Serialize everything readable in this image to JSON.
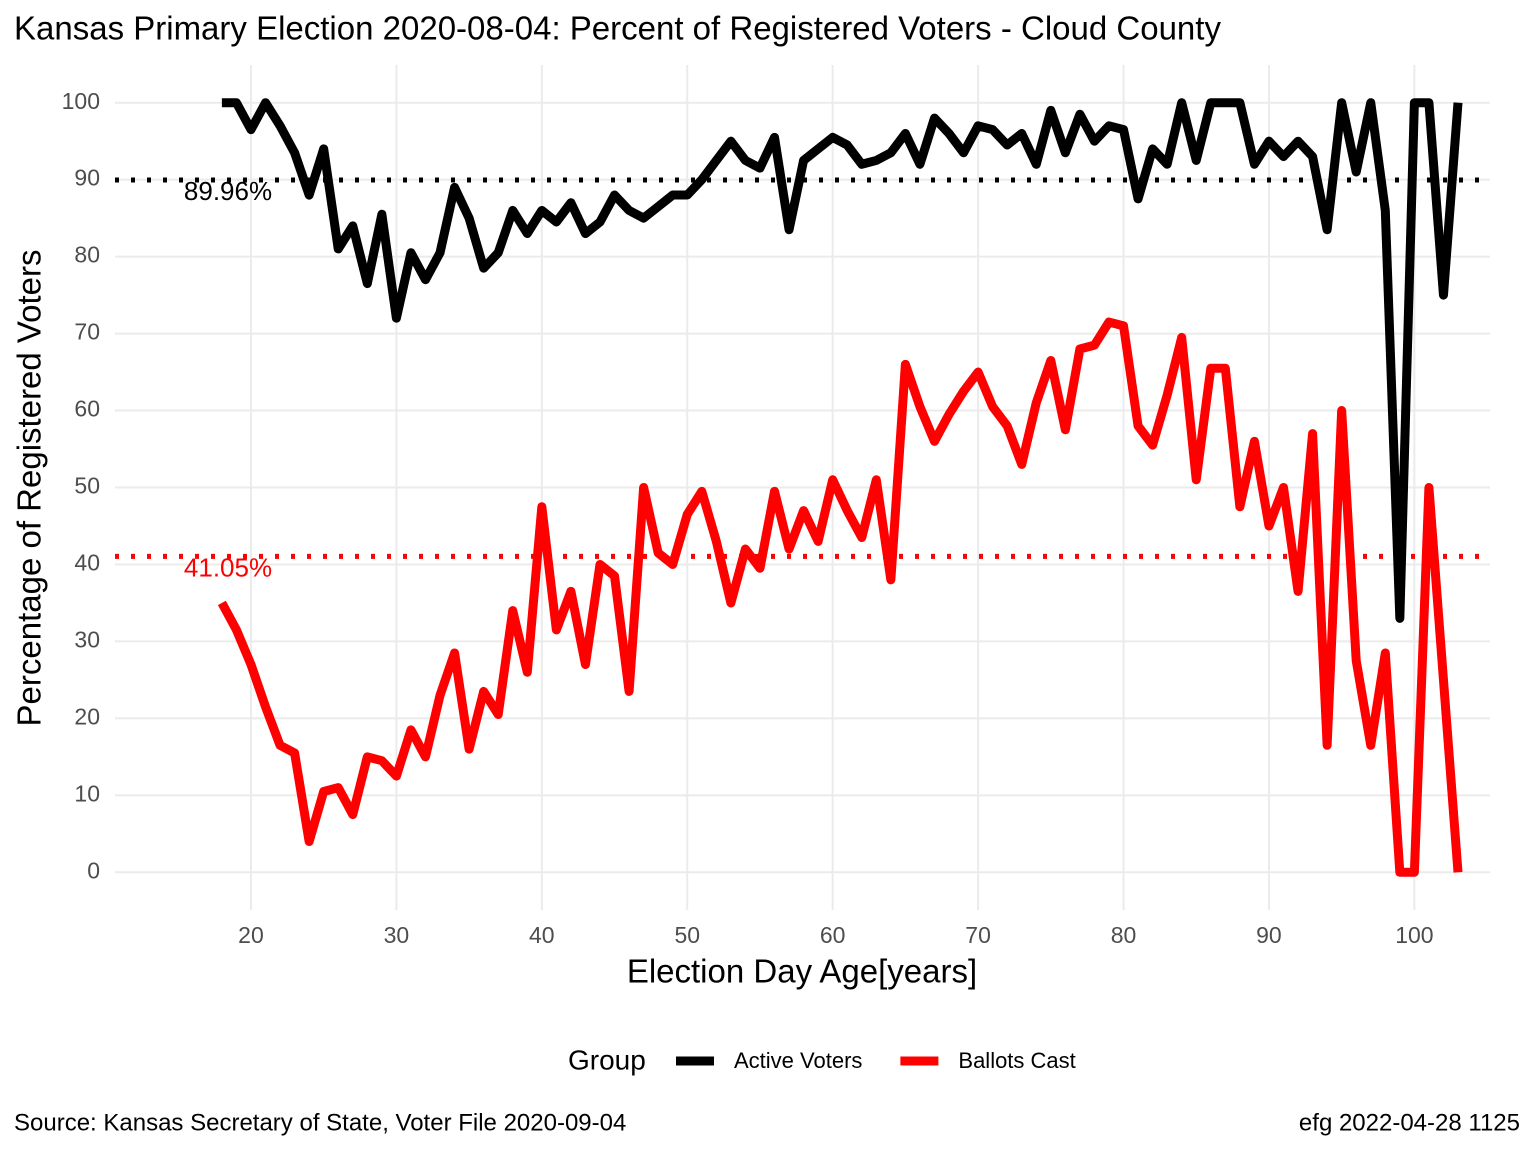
{
  "chart_data": {
    "type": "line",
    "title": "Kansas Primary Election 2020-08-04:  Percent of Registered Voters - Cloud County",
    "x_label": "Election Day Age[years]",
    "y_label": "Percentage of Registered Voters",
    "legend_title": "Group",
    "caption_left": "Source:  Kansas Secretary of State, Voter File  2020-09-04",
    "caption_right": "efg 2022-04-28 1125",
    "x": [
      18,
      19,
      20,
      21,
      22,
      23,
      24,
      25,
      26,
      27,
      28,
      29,
      30,
      31,
      32,
      33,
      34,
      35,
      36,
      37,
      38,
      39,
      40,
      41,
      42,
      43,
      44,
      45,
      46,
      47,
      48,
      49,
      50,
      51,
      52,
      53,
      54,
      55,
      56,
      57,
      58,
      59,
      60,
      61,
      62,
      63,
      64,
      65,
      66,
      67,
      68,
      69,
      70,
      71,
      72,
      73,
      74,
      75,
      76,
      77,
      78,
      79,
      80,
      81,
      82,
      83,
      84,
      85,
      86,
      87,
      88,
      89,
      90,
      91,
      92,
      93,
      94,
      95,
      96,
      97,
      98,
      99,
      100,
      101,
      102,
      103
    ],
    "series": [
      {
        "name": "Active Voters",
        "color": "#000000",
        "values": [
          100,
          100,
          96.5,
          100,
          97,
          93.5,
          88,
          94,
          81,
          84,
          76.5,
          85.5,
          72,
          80.5,
          77,
          80.5,
          89,
          85,
          78.5,
          80.5,
          86,
          83,
          86,
          84.5,
          87,
          83,
          84.5,
          88,
          86,
          85,
          86.5,
          88,
          88,
          90,
          92.5,
          95,
          92.5,
          91.5,
          95.5,
          83.5,
          92.5,
          94,
          95.5,
          94.5,
          92,
          92.5,
          93.5,
          96,
          92,
          98,
          96,
          93.5,
          97,
          96.5,
          94.5,
          96,
          92,
          99,
          93.5,
          98.5,
          95,
          97,
          96.5,
          87.5,
          94,
          92,
          100,
          92.5,
          100,
          100,
          100,
          92,
          95,
          93,
          95,
          93,
          83.5,
          100,
          91,
          100,
          86,
          33,
          100,
          100,
          75,
          100
        ]
      },
      {
        "name": "Ballots Cast",
        "color": "#ff0000",
        "values": [
          35,
          31.5,
          27,
          21.5,
          16.5,
          15.5,
          4,
          10.5,
          11,
          7.5,
          15,
          14.5,
          12.5,
          18.5,
          15,
          23,
          28.5,
          16,
          23.5,
          20.5,
          34,
          26,
          47.5,
          31.5,
          36.5,
          27,
          40,
          38.5,
          23.5,
          50,
          41.5,
          40,
          46.5,
          49.5,
          43,
          35,
          42,
          39.5,
          49.5,
          42,
          47,
          43,
          51,
          47,
          43.5,
          51,
          38,
          66,
          60.5,
          56,
          59.5,
          62.5,
          65,
          60.5,
          58,
          53,
          61,
          66.5,
          57.5,
          68,
          68.5,
          71.5,
          71,
          58,
          55.5,
          62,
          69.5,
          51,
          65.5,
          65.5,
          47.5,
          56,
          45,
          50,
          36.5,
          57,
          16.5,
          60,
          27.5,
          16.5,
          28.5,
          0,
          0,
          50,
          25,
          0
        ]
      }
    ],
    "hlines": [
      {
        "value": 89.96,
        "label": "89.96%",
        "color": "#000000"
      },
      {
        "value": 41.05,
        "label": "41.05%",
        "color": "#ff0000"
      }
    ],
    "xlim": [
      10.65,
      105.2
    ],
    "ylim": [
      -4.9,
      104.9
    ],
    "xticks": [
      20,
      30,
      40,
      50,
      60,
      70,
      80,
      90,
      100
    ],
    "yticks": [
      0,
      10,
      20,
      30,
      40,
      50,
      60,
      70,
      80,
      90,
      100
    ],
    "grid": true
  }
}
